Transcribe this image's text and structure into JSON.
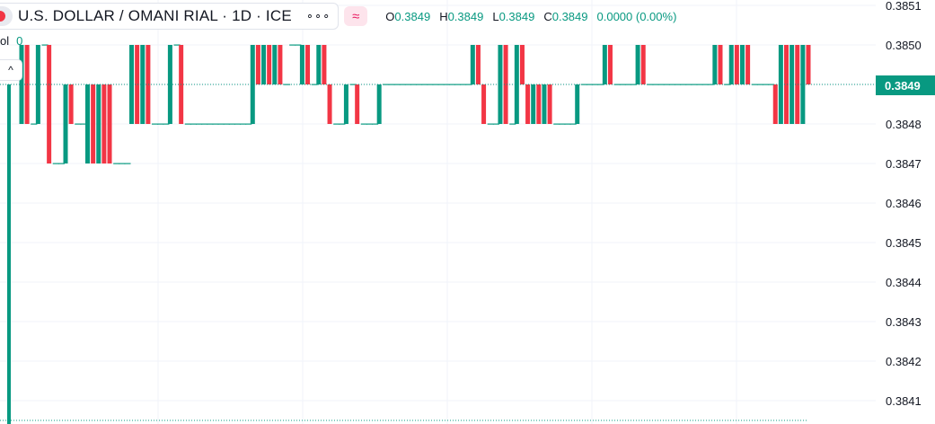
{
  "header": {
    "symbol_title": "U.S. DOLLAR / OMANI RIAL · 1D · ICE",
    "more_label": "∘∘∘",
    "compare_icon": "≈",
    "ohlc": {
      "o_label": "O",
      "o_value": "0.3849",
      "h_label": "H",
      "h_value": "0.3849",
      "l_label": "L",
      "l_value": "0.3849",
      "c_label": "C",
      "c_value": "0.3849",
      "change": "0.0000 (0.00%)"
    },
    "vol_label": "ol",
    "vol_value": "0",
    "collapse_icon": "^"
  },
  "last_price_label": "0.3849",
  "colors": {
    "up": "#089981",
    "down": "#f23645",
    "grid": "#f0f3fa",
    "text": "#131722"
  },
  "chart_data": {
    "type": "ohlc",
    "symbol": "U.S. DOLLAR / OMANI RIAL",
    "interval": "1D",
    "exchange": "ICE",
    "y_ticks": [
      "0.3851",
      "0.3850",
      "0.3849",
      "0.3848",
      "0.3847",
      "0.3846",
      "0.3845",
      "0.3844",
      "0.3843",
      "0.3842",
      "0.3841"
    ],
    "ylim": [
      0.38405,
      0.38512
    ],
    "last_price": 0.3849,
    "grid": true,
    "bars": [
      {
        "o": 0.3848,
        "c": 0.385
      },
      {
        "o": 0.385,
        "c": 0.3848
      },
      {
        "o": 0.3848,
        "c": 0.3848
      },
      {
        "o": 0.3848,
        "c": 0.385
      },
      {
        "o": 0.385,
        "c": 0.385
      },
      {
        "o": 0.385,
        "c": 0.3847
      },
      {
        "o": 0.3847,
        "c": 0.3847
      },
      {
        "o": 0.3847,
        "c": 0.3847
      },
      {
        "o": 0.3847,
        "c": 0.3849
      },
      {
        "o": 0.3849,
        "c": 0.3848
      },
      {
        "o": 0.3848,
        "c": 0.3848
      },
      {
        "o": 0.3848,
        "c": 0.3848
      },
      {
        "o": 0.3847,
        "c": 0.3849
      },
      {
        "o": 0.3849,
        "c": 0.3847
      },
      {
        "o": 0.3847,
        "c": 0.3849
      },
      {
        "o": 0.3849,
        "c": 0.3847
      },
      {
        "o": 0.3849,
        "c": 0.3847
      },
      {
        "o": 0.3847,
        "c": 0.3847
      },
      {
        "o": 0.3847,
        "c": 0.3847
      },
      {
        "o": 0.3847,
        "c": 0.3847
      },
      {
        "o": 0.3848,
        "c": 0.385
      },
      {
        "o": 0.385,
        "c": 0.3848
      },
      {
        "o": 0.3848,
        "c": 0.385
      },
      {
        "o": 0.385,
        "c": 0.3848
      },
      {
        "o": 0.3848,
        "c": 0.3848
      },
      {
        "o": 0.3848,
        "c": 0.3848
      },
      {
        "o": 0.3848,
        "c": 0.3848
      },
      {
        "o": 0.3848,
        "c": 0.385
      },
      {
        "o": 0.385,
        "c": 0.385
      },
      {
        "o": 0.385,
        "c": 0.3848
      },
      {
        "o": 0.3848,
        "c": 0.3848
      },
      {
        "o": 0.3848,
        "c": 0.3848
      },
      {
        "o": 0.3848,
        "c": 0.3848
      },
      {
        "o": 0.3848,
        "c": 0.3848
      },
      {
        "o": 0.3848,
        "c": 0.3848
      },
      {
        "o": 0.3848,
        "c": 0.3848
      },
      {
        "o": 0.3848,
        "c": 0.3848
      },
      {
        "o": 0.3848,
        "c": 0.3848
      },
      {
        "o": 0.3848,
        "c": 0.3848
      },
      {
        "o": 0.3848,
        "c": 0.3848
      },
      {
        "o": 0.3848,
        "c": 0.3848
      },
      {
        "o": 0.3848,
        "c": 0.3848
      },
      {
        "o": 0.3848,
        "c": 0.385
      },
      {
        "o": 0.385,
        "c": 0.3849
      },
      {
        "o": 0.3849,
        "c": 0.385
      },
      {
        "o": 0.385,
        "c": 0.3849
      },
      {
        "o": 0.3849,
        "c": 0.385
      },
      {
        "o": 0.385,
        "c": 0.3849
      },
      {
        "o": 0.3849,
        "c": 0.3849
      },
      {
        "o": 0.385,
        "c": 0.385
      },
      {
        "o": 0.385,
        "c": 0.385
      },
      {
        "o": 0.3849,
        "c": 0.385
      },
      {
        "o": 0.385,
        "c": 0.3849
      },
      {
        "o": 0.3849,
        "c": 0.3849
      },
      {
        "o": 0.3849,
        "c": 0.385
      },
      {
        "o": 0.385,
        "c": 0.3849
      },
      {
        "o": 0.3849,
        "c": 0.3848
      },
      {
        "o": 0.3848,
        "c": 0.3848
      },
      {
        "o": 0.3848,
        "c": 0.3848
      },
      {
        "o": 0.3848,
        "c": 0.3849
      },
      {
        "o": 0.3849,
        "c": 0.3849
      },
      {
        "o": 0.3849,
        "c": 0.3848
      },
      {
        "o": 0.3848,
        "c": 0.3848
      },
      {
        "o": 0.3848,
        "c": 0.3848
      },
      {
        "o": 0.3848,
        "c": 0.3848
      },
      {
        "o": 0.3848,
        "c": 0.3849
      },
      {
        "o": 0.3849,
        "c": 0.3849
      },
      {
        "o": 0.3849,
        "c": 0.3849
      },
      {
        "o": 0.3849,
        "c": 0.3849
      },
      {
        "o": 0.3849,
        "c": 0.3849
      },
      {
        "o": 0.3849,
        "c": 0.3849
      },
      {
        "o": 0.3849,
        "c": 0.3849
      },
      {
        "o": 0.3849,
        "c": 0.3849
      },
      {
        "o": 0.3849,
        "c": 0.3849
      },
      {
        "o": 0.3849,
        "c": 0.3849
      },
      {
        "o": 0.3849,
        "c": 0.3849
      },
      {
        "o": 0.3849,
        "c": 0.3849
      },
      {
        "o": 0.3849,
        "c": 0.3849
      },
      {
        "o": 0.3849,
        "c": 0.3849
      },
      {
        "o": 0.3849,
        "c": 0.3849
      },
      {
        "o": 0.3849,
        "c": 0.3849
      },
      {
        "o": 0.3849,
        "c": 0.3849
      },
      {
        "o": 0.3849,
        "c": 0.385
      },
      {
        "o": 0.385,
        "c": 0.3849
      },
      {
        "o": 0.3849,
        "c": 0.3848
      },
      {
        "o": 0.3848,
        "c": 0.3848
      },
      {
        "o": 0.3848,
        "c": 0.3848
      },
      {
        "o": 0.3848,
        "c": 0.385
      },
      {
        "o": 0.385,
        "c": 0.3848
      },
      {
        "o": 0.3848,
        "c": 0.3848
      },
      {
        "o": 0.3848,
        "c": 0.385
      },
      {
        "o": 0.385,
        "c": 0.3849
      },
      {
        "o": 0.3849,
        "c": 0.3848
      },
      {
        "o": 0.3848,
        "c": 0.3849
      },
      {
        "o": 0.3849,
        "c": 0.3848
      },
      {
        "o": 0.3848,
        "c": 0.3849
      },
      {
        "o": 0.3849,
        "c": 0.3848
      },
      {
        "o": 0.3848,
        "c": 0.3848
      },
      {
        "o": 0.3848,
        "c": 0.3848
      },
      {
        "o": 0.3848,
        "c": 0.3848
      },
      {
        "o": 0.3848,
        "c": 0.3848
      },
      {
        "o": 0.3848,
        "c": 0.3849
      },
      {
        "o": 0.3849,
        "c": 0.3849
      },
      {
        "o": 0.3849,
        "c": 0.3849
      },
      {
        "o": 0.3849,
        "c": 0.3849
      },
      {
        "o": 0.3849,
        "c": 0.3849
      },
      {
        "o": 0.3849,
        "c": 0.385
      },
      {
        "o": 0.385,
        "c": 0.3849
      },
      {
        "o": 0.3849,
        "c": 0.3849
      },
      {
        "o": 0.3849,
        "c": 0.3849
      },
      {
        "o": 0.3849,
        "c": 0.3849
      },
      {
        "o": 0.3849,
        "c": 0.3849
      },
      {
        "o": 0.3849,
        "c": 0.385
      },
      {
        "o": 0.385,
        "c": 0.3849
      },
      {
        "o": 0.3849,
        "c": 0.3849
      },
      {
        "o": 0.3849,
        "c": 0.3849
      },
      {
        "o": 0.3849,
        "c": 0.3849
      },
      {
        "o": 0.3849,
        "c": 0.3849
      },
      {
        "o": 0.3849,
        "c": 0.3849
      },
      {
        "o": 0.3849,
        "c": 0.3849
      },
      {
        "o": 0.3849,
        "c": 0.3849
      },
      {
        "o": 0.3849,
        "c": 0.3849
      },
      {
        "o": 0.3849,
        "c": 0.3849
      },
      {
        "o": 0.3849,
        "c": 0.3849
      },
      {
        "o": 0.3849,
        "c": 0.3849
      },
      {
        "o": 0.3849,
        "c": 0.3849
      },
      {
        "o": 0.3849,
        "c": 0.385
      },
      {
        "o": 0.385,
        "c": 0.3849
      },
      {
        "o": 0.3849,
        "c": 0.3849
      },
      {
        "o": 0.3849,
        "c": 0.385
      },
      {
        "o": 0.385,
        "c": 0.3849
      },
      {
        "o": 0.3849,
        "c": 0.385
      },
      {
        "o": 0.385,
        "c": 0.3849
      },
      {
        "o": 0.3849,
        "c": 0.3849
      },
      {
        "o": 0.3849,
        "c": 0.3849
      },
      {
        "o": 0.3849,
        "c": 0.3849
      },
      {
        "o": 0.3849,
        "c": 0.3849
      },
      {
        "o": 0.3849,
        "c": 0.3848
      },
      {
        "o": 0.3848,
        "c": 0.385
      },
      {
        "o": 0.385,
        "c": 0.3848
      },
      {
        "o": 0.3848,
        "c": 0.385
      },
      {
        "o": 0.385,
        "c": 0.3848
      },
      {
        "o": 0.3848,
        "c": 0.385
      },
      {
        "o": 0.385,
        "c": 0.3849
      }
    ],
    "volume": 0
  }
}
